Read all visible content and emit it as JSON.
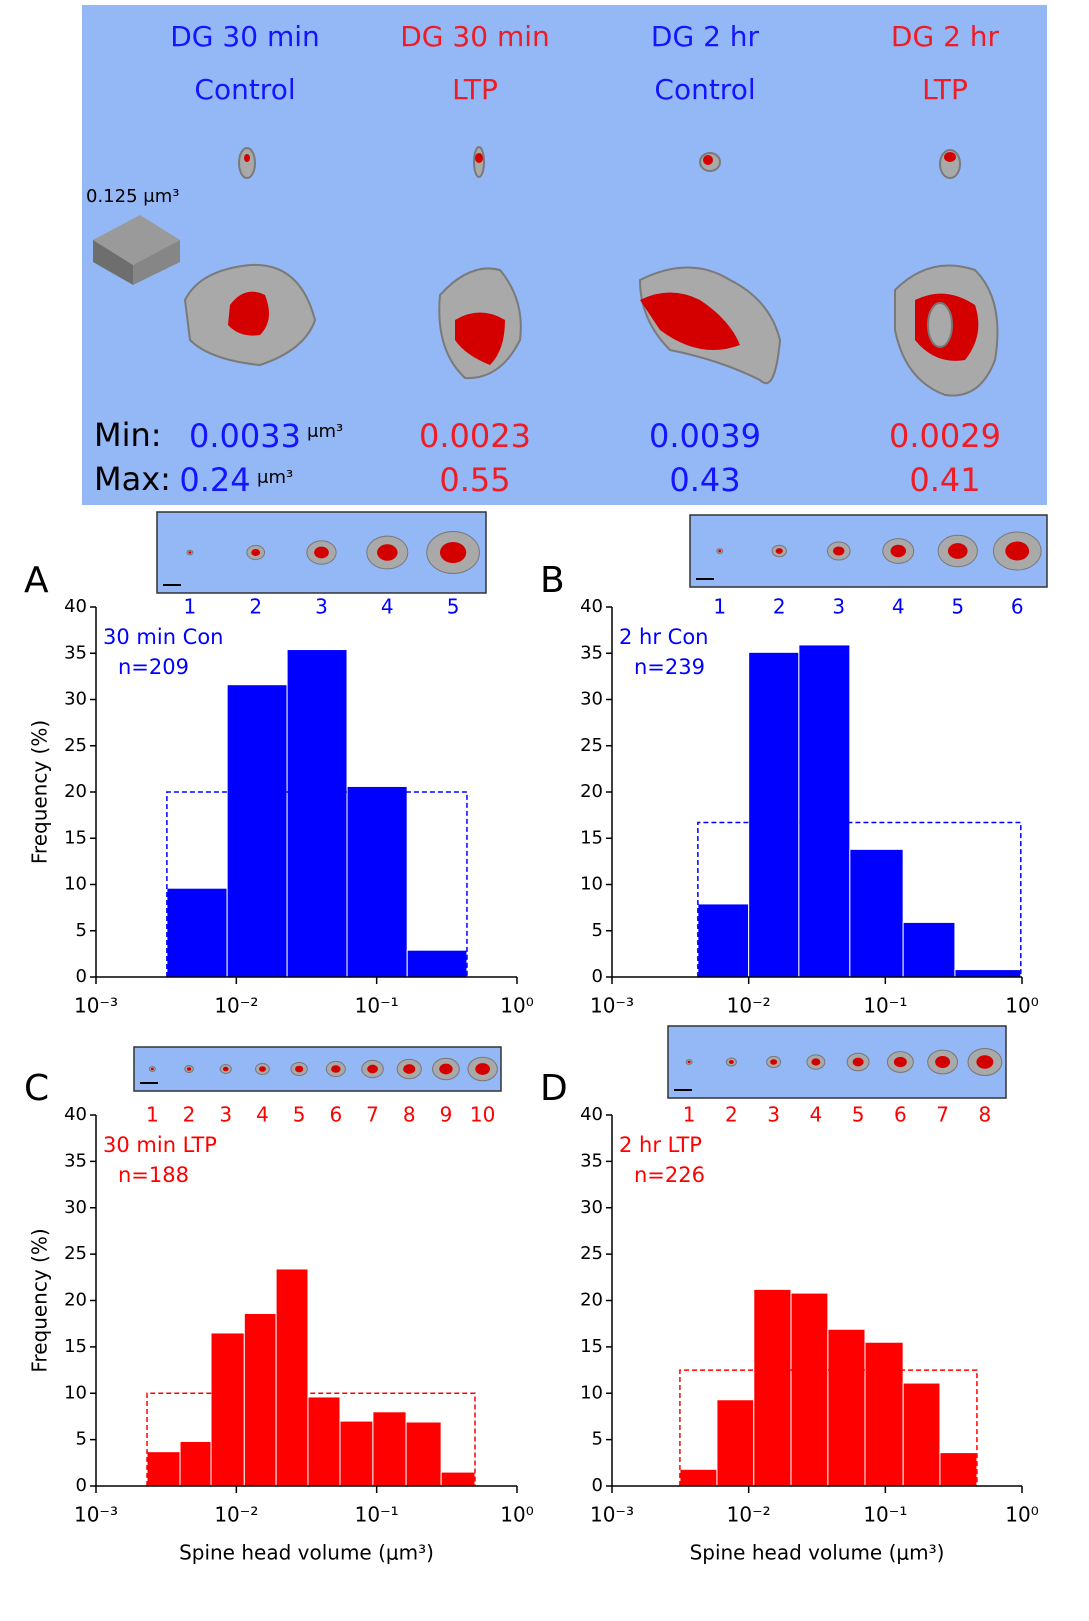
{
  "header": {
    "scale_label": "0.125 μm³",
    "min_label": "Min:",
    "max_label": "Max:",
    "columns": [
      {
        "title": "DG 30 min",
        "condition": "Control",
        "color": "#1414ff",
        "min": 0.0033,
        "min_unit": "μm³",
        "max": 0.24,
        "max_unit": "μm³"
      },
      {
        "title": "DG 30 min",
        "condition": "LTP",
        "color": "#ee1c24",
        "min": 0.0023,
        "max": 0.55
      },
      {
        "title": "DG 2 hr",
        "condition": "Control",
        "color": "#1414ff",
        "min": 0.0039,
        "max": 0.43
      },
      {
        "title": "DG 2 hr",
        "condition": "LTP",
        "color": "#ee1c24",
        "min": 0.0029,
        "max": 0.41
      }
    ]
  },
  "chart_data": [
    {
      "type": "histogram",
      "panel": "A",
      "annotation": "30 min Con",
      "n_label": "n=209",
      "color": "#0000ff",
      "inset_labels": [
        1,
        2,
        3,
        4,
        5
      ],
      "bins": [
        0.0032,
        0.0086,
        0.023,
        0.0615,
        0.165,
        0.44
      ],
      "values": [
        9.6,
        31.6,
        35.4,
        20.6,
        2.9
      ],
      "reference_level": 20,
      "ylabel": "Frequency (%)",
      "xscale": "log",
      "xlim": [
        0.001,
        1
      ],
      "ylim": [
        0,
        40
      ],
      "xticks": [
        {
          "value": 0.001,
          "label": "10⁻³"
        },
        {
          "value": 0.01,
          "label": "10⁻²"
        },
        {
          "value": 0.1,
          "label": "10⁻¹"
        },
        {
          "value": 1,
          "label": "10⁰"
        }
      ],
      "yticks": [
        0,
        5,
        10,
        15,
        20,
        25,
        30,
        35,
        40
      ]
    },
    {
      "type": "histogram",
      "panel": "B",
      "annotation": "2 hr Con",
      "n_label": "n=239",
      "color": "#0000ff",
      "inset_labels": [
        1,
        2,
        3,
        4,
        5,
        6
      ],
      "bins": [
        0.00425,
        0.01,
        0.0233,
        0.055,
        0.135,
        0.323,
        0.98
      ],
      "values": [
        7.9,
        35.1,
        35.9,
        13.8,
        5.9,
        0.8
      ],
      "reference_level": 16.7,
      "xscale": "log",
      "xlim": [
        0.001,
        1
      ],
      "ylim": [
        0,
        40
      ],
      "xticks": [
        {
          "value": 0.001,
          "label": "10⁻³"
        },
        {
          "value": 0.01,
          "label": "10⁻²"
        },
        {
          "value": 0.1,
          "label": "10⁻¹"
        },
        {
          "value": 1,
          "label": "10⁰"
        }
      ],
      "yticks": [
        0,
        5,
        10,
        15,
        20,
        25,
        30,
        35,
        40
      ]
    },
    {
      "type": "histogram",
      "panel": "C",
      "annotation": "30 min LTP",
      "n_label": "n=188",
      "color": "#ff0000",
      "inset_labels": [
        1,
        2,
        3,
        4,
        5,
        6,
        7,
        8,
        9,
        10
      ],
      "bins": [
        0.00231,
        0.00397,
        0.0066,
        0.0114,
        0.0192,
        0.0324,
        0.0548,
        0.094,
        0.162,
        0.288,
        0.502
      ],
      "values": [
        3.7,
        4.8,
        16.5,
        18.6,
        23.4,
        9.6,
        7.0,
        8.0,
        6.9,
        1.5
      ],
      "reference_level": 10,
      "ylabel": "Frequency (%)",
      "xlabel": "Spine head volume (μm³)",
      "xscale": "log",
      "xlim": [
        0.001,
        1
      ],
      "ylim": [
        0,
        40
      ],
      "xticks": [
        {
          "value": 0.001,
          "label": "10⁻³"
        },
        {
          "value": 0.01,
          "label": "10⁻²"
        },
        {
          "value": 0.1,
          "label": "10⁻¹"
        },
        {
          "value": 1,
          "label": "10⁰"
        }
      ],
      "yticks": [
        0,
        5,
        10,
        15,
        20,
        25,
        30,
        35,
        40
      ]
    },
    {
      "type": "histogram",
      "panel": "D",
      "annotation": "2 hr LTP",
      "n_label": "n=226",
      "color": "#ff0000",
      "inset_labels": [
        1,
        2,
        3,
        4,
        5,
        6,
        7,
        8
      ],
      "bins": [
        0.00314,
        0.00586,
        0.0109,
        0.0204,
        0.038,
        0.071,
        0.135,
        0.251,
        0.468
      ],
      "values": [
        1.8,
        9.3,
        21.2,
        20.8,
        16.9,
        15.5,
        11.1,
        3.6
      ],
      "reference_level": 12.5,
      "xlabel": "Spine head volume (μm³)",
      "xscale": "log",
      "xlim": [
        0.001,
        1
      ],
      "ylim": [
        0,
        40
      ],
      "xticks": [
        {
          "value": 0.001,
          "label": "10⁻³"
        },
        {
          "value": 0.01,
          "label": "10⁻²"
        },
        {
          "value": 0.1,
          "label": "10⁻¹"
        },
        {
          "value": 1,
          "label": "10⁰"
        }
      ],
      "yticks": [
        0,
        5,
        10,
        15,
        20,
        25,
        30,
        35,
        40
      ]
    }
  ]
}
